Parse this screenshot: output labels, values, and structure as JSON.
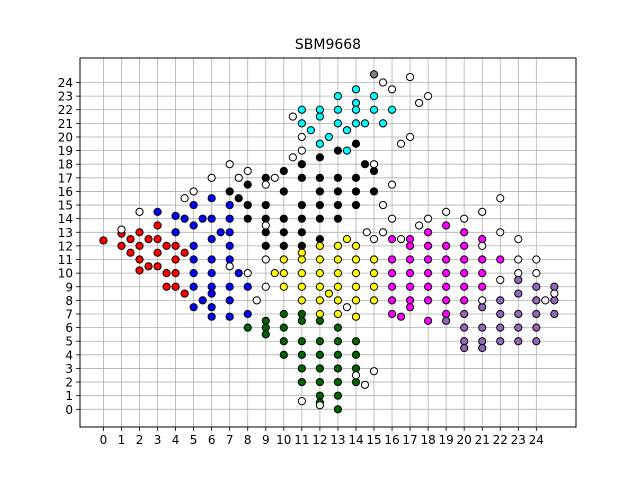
{
  "chart_data": {
    "type": "scatter",
    "title": "SBM9668",
    "xlabel": "",
    "ylabel": "",
    "xlim": [
      -1.3,
      26.2
    ],
    "ylim": [
      -1.3,
      25.8
    ],
    "x_ticks": [
      "0",
      "1",
      "2",
      "3",
      "4",
      "5",
      "6",
      "7",
      "8",
      "9",
      "10",
      "11",
      "12",
      "13",
      "14",
      "15",
      "16",
      "17",
      "18",
      "19",
      "20",
      "21",
      "22",
      "23",
      "24"
    ],
    "y_ticks": [
      "0",
      "1",
      "2",
      "3",
      "4",
      "5",
      "6",
      "7",
      "8",
      "9",
      "10",
      "11",
      "12",
      "13",
      "14",
      "15",
      "16",
      "17",
      "18",
      "19",
      "20",
      "21",
      "22",
      "23",
      "24"
    ],
    "grid": true,
    "legend": "none",
    "marker_edge_color": "#000000",
    "series": [
      {
        "color": "#ff0000",
        "points": [
          [
            0,
            12.4
          ],
          [
            1,
            12.9
          ],
          [
            1,
            12
          ],
          [
            1.5,
            11.5
          ],
          [
            2,
            13
          ],
          [
            2,
            12
          ],
          [
            2,
            11
          ],
          [
            2.5,
            10.5
          ],
          [
            3,
            13.5
          ],
          [
            3,
            12.5
          ],
          [
            3,
            11.5
          ],
          [
            3,
            10.5
          ],
          [
            3.5,
            10
          ],
          [
            4,
            12
          ],
          [
            4,
            11
          ],
          [
            4,
            10
          ],
          [
            4,
            9
          ],
          [
            4.5,
            8.5
          ],
          [
            4.5,
            11.5
          ],
          [
            2.5,
            12.5
          ],
          [
            1.5,
            12.5
          ],
          [
            3.5,
            12
          ],
          [
            3.5,
            9
          ],
          [
            4,
            13
          ],
          [
            2,
            10.2
          ]
        ]
      },
      {
        "color": "#0000ff",
        "points": [
          [
            3,
            14.5
          ],
          [
            4,
            14.2
          ],
          [
            5,
            15
          ],
          [
            6,
            15.5
          ],
          [
            7,
            15
          ],
          [
            4,
            13
          ],
          [
            5,
            13.5
          ],
          [
            6,
            14
          ],
          [
            7,
            14
          ],
          [
            5,
            12
          ],
          [
            6,
            12.5
          ],
          [
            7,
            13
          ],
          [
            5,
            11
          ],
          [
            6,
            11
          ],
          [
            7,
            12
          ],
          [
            5,
            10
          ],
          [
            6,
            10
          ],
          [
            7,
            11
          ],
          [
            5,
            9
          ],
          [
            6,
            9
          ],
          [
            7,
            9
          ],
          [
            5.5,
            8
          ],
          [
            6,
            7.5
          ],
          [
            7,
            8
          ],
          [
            6,
            6.8
          ],
          [
            7,
            6.8
          ],
          [
            8,
            7
          ],
          [
            8,
            9
          ],
          [
            6.5,
            13
          ],
          [
            5.5,
            14
          ],
          [
            4.5,
            14
          ],
          [
            7.5,
            10
          ],
          [
            6,
            8.5
          ],
          [
            5,
            7.5
          ]
        ]
      },
      {
        "color": "#000000",
        "points": [
          [
            7,
            16
          ],
          [
            8,
            16.5
          ],
          [
            9,
            17
          ],
          [
            10,
            17.5
          ],
          [
            11,
            18
          ],
          [
            12,
            18.5
          ],
          [
            13,
            19
          ],
          [
            14,
            19.5
          ],
          [
            14.5,
            18
          ],
          [
            13,
            17
          ],
          [
            12,
            16
          ],
          [
            11,
            15
          ],
          [
            10,
            14
          ],
          [
            9,
            13
          ],
          [
            8,
            15
          ],
          [
            9,
            15
          ],
          [
            10,
            16
          ],
          [
            11,
            17
          ],
          [
            12,
            17
          ],
          [
            13,
            16
          ],
          [
            14,
            16
          ],
          [
            13,
            15
          ],
          [
            12,
            15
          ],
          [
            11,
            14
          ],
          [
            10,
            13
          ],
          [
            12,
            14
          ],
          [
            13,
            14
          ],
          [
            14,
            15
          ],
          [
            9,
            14
          ],
          [
            8,
            14
          ],
          [
            11,
            12
          ],
          [
            12,
            12.5
          ],
          [
            10,
            12
          ],
          [
            9,
            12
          ],
          [
            11,
            13
          ],
          [
            7.5,
            15.5
          ],
          [
            15,
            16
          ],
          [
            14,
            17
          ],
          [
            15,
            17.5
          ]
        ]
      },
      {
        "color": "#00ffff",
        "points": [
          [
            11,
            21
          ],
          [
            12,
            21.5
          ],
          [
            13,
            22
          ],
          [
            14,
            22.5
          ],
          [
            15,
            23
          ],
          [
            12,
            22
          ],
          [
            13,
            23
          ],
          [
            14,
            23.5
          ],
          [
            11.5,
            20.5
          ],
          [
            12.5,
            20
          ],
          [
            13.5,
            20.5
          ],
          [
            14.5,
            21
          ],
          [
            15,
            22
          ],
          [
            13,
            21
          ],
          [
            14,
            21
          ],
          [
            15.5,
            21
          ],
          [
            12,
            19.5
          ],
          [
            13.5,
            19
          ],
          [
            16,
            22
          ],
          [
            14,
            22
          ],
          [
            11,
            22
          ]
        ]
      },
      {
        "color": "#ffff00",
        "points": [
          [
            10,
            11
          ],
          [
            11,
            11.5
          ],
          [
            12,
            12
          ],
          [
            13,
            12
          ],
          [
            14,
            12
          ],
          [
            15,
            11
          ],
          [
            10,
            10
          ],
          [
            11,
            10
          ],
          [
            12,
            10
          ],
          [
            13,
            10
          ],
          [
            14,
            10
          ],
          [
            15,
            10
          ],
          [
            11,
            9
          ],
          [
            12,
            9
          ],
          [
            13,
            9
          ],
          [
            14,
            9
          ],
          [
            15,
            9
          ],
          [
            11,
            8
          ],
          [
            12,
            8
          ],
          [
            13,
            8
          ],
          [
            14,
            8
          ],
          [
            15,
            8
          ],
          [
            12,
            7
          ],
          [
            13,
            7
          ],
          [
            14,
            6.8
          ],
          [
            11,
            11
          ],
          [
            13,
            11
          ],
          [
            14,
            11
          ],
          [
            12,
            11
          ],
          [
            10,
            9
          ],
          [
            9.5,
            10
          ],
          [
            13.5,
            12.5
          ],
          [
            12.5,
            8.5
          ]
        ]
      },
      {
        "color": "#ff00ff",
        "points": [
          [
            16,
            12.5
          ],
          [
            17,
            12.5
          ],
          [
            18,
            13
          ],
          [
            19,
            13.5
          ],
          [
            20,
            13
          ],
          [
            21,
            12.5
          ],
          [
            16,
            11
          ],
          [
            17,
            11
          ],
          [
            18,
            11
          ],
          [
            19,
            11
          ],
          [
            20,
            11
          ],
          [
            21,
            11
          ],
          [
            16,
            10
          ],
          [
            17,
            10
          ],
          [
            18,
            10
          ],
          [
            19,
            10
          ],
          [
            20,
            10
          ],
          [
            21,
            10
          ],
          [
            16,
            9
          ],
          [
            17,
            9
          ],
          [
            18,
            9
          ],
          [
            19,
            9
          ],
          [
            20,
            9
          ],
          [
            16,
            8
          ],
          [
            17,
            8
          ],
          [
            18,
            8
          ],
          [
            19,
            7
          ],
          [
            16,
            7
          ],
          [
            18,
            6.5
          ],
          [
            20,
            8
          ],
          [
            21,
            9
          ],
          [
            19,
            12
          ],
          [
            18,
            12
          ],
          [
            17,
            12
          ],
          [
            20,
            12
          ],
          [
            22,
            11
          ],
          [
            19,
            8
          ],
          [
            17,
            7.5
          ],
          [
            16.5,
            6.8
          ]
        ]
      },
      {
        "color": "#006400",
        "points": [
          [
            8,
            6
          ],
          [
            9,
            6.5
          ],
          [
            10,
            7
          ],
          [
            11,
            6.5
          ],
          [
            12,
            6.5
          ],
          [
            13,
            6
          ],
          [
            9,
            5.5
          ],
          [
            10,
            5
          ],
          [
            11,
            5
          ],
          [
            12,
            5
          ],
          [
            13,
            5
          ],
          [
            14,
            5
          ],
          [
            10,
            4
          ],
          [
            11,
            4
          ],
          [
            12,
            4
          ],
          [
            13,
            4
          ],
          [
            14,
            4
          ],
          [
            11,
            3
          ],
          [
            12,
            3
          ],
          [
            13,
            3
          ],
          [
            14,
            3
          ],
          [
            11,
            2
          ],
          [
            12,
            2
          ],
          [
            13,
            2
          ],
          [
            14,
            2
          ],
          [
            12,
            1
          ],
          [
            13,
            1
          ],
          [
            12,
            0.5
          ],
          [
            13,
            0
          ],
          [
            10,
            6
          ],
          [
            11,
            7
          ],
          [
            9,
            6
          ]
        ]
      },
      {
        "color": "#9467bd",
        "points": [
          [
            20,
            7
          ],
          [
            21,
            7.5
          ],
          [
            22,
            8
          ],
          [
            23,
            8.5
          ],
          [
            24,
            9
          ],
          [
            25,
            9
          ],
          [
            20,
            6
          ],
          [
            21,
            6
          ],
          [
            22,
            6
          ],
          [
            23,
            6
          ],
          [
            24,
            6
          ],
          [
            25,
            7
          ],
          [
            20,
            5
          ],
          [
            21,
            5
          ],
          [
            22,
            5
          ],
          [
            23,
            5
          ],
          [
            24,
            5
          ],
          [
            21,
            4.5
          ],
          [
            22,
            7
          ],
          [
            23,
            7
          ],
          [
            24,
            7
          ],
          [
            19,
            6.5
          ],
          [
            20,
            4.5
          ],
          [
            24,
            8
          ],
          [
            25,
            8
          ],
          [
            23,
            9.5
          ]
        ]
      },
      {
        "color": "#ffffff",
        "points": [
          [
            1,
            13.2
          ],
          [
            2,
            14.5
          ],
          [
            4.5,
            15.5
          ],
          [
            5,
            16
          ],
          [
            6,
            17
          ],
          [
            7,
            18
          ],
          [
            8,
            17.5
          ],
          [
            9,
            16.5
          ],
          [
            10.5,
            18.5
          ],
          [
            11,
            19
          ],
          [
            9.5,
            17
          ],
          [
            7.5,
            17
          ],
          [
            15.5,
            15
          ],
          [
            16,
            14
          ],
          [
            15.5,
            13
          ],
          [
            16,
            16.5
          ],
          [
            15,
            18
          ],
          [
            16.5,
            19.5
          ],
          [
            17,
            20
          ],
          [
            17.5,
            22.5
          ],
          [
            18,
            23
          ],
          [
            17,
            24.4
          ],
          [
            16,
            23.5
          ],
          [
            15.5,
            24
          ],
          [
            11,
            20
          ],
          [
            10.5,
            21.5
          ],
          [
            14.6,
            13
          ],
          [
            15,
            12.5
          ],
          [
            16.5,
            12.5
          ],
          [
            17.5,
            13.5
          ],
          [
            18,
            14
          ],
          [
            19,
            14.5
          ],
          [
            20,
            14
          ],
          [
            21,
            14.5
          ],
          [
            22,
            13
          ],
          [
            22,
            15.5
          ],
          [
            23,
            12.5
          ],
          [
            23,
            11
          ],
          [
            24,
            11
          ],
          [
            24,
            10
          ],
          [
            23,
            10
          ],
          [
            22,
            9.5
          ],
          [
            21,
            8
          ],
          [
            25,
            8.5
          ],
          [
            24.5,
            8
          ],
          [
            21,
            12
          ],
          [
            9,
            9
          ],
          [
            8.5,
            8
          ],
          [
            8,
            10
          ],
          [
            7,
            10.5
          ],
          [
            14,
            2.5
          ],
          [
            14.5,
            1.8
          ],
          [
            15,
            2.8
          ],
          [
            12,
            0.3
          ],
          [
            11,
            0.6
          ],
          [
            13.5,
            7.5
          ],
          [
            9,
            11
          ],
          [
            9,
            13.5
          ]
        ]
      },
      {
        "color": "#808080",
        "points": [
          [
            15,
            24.6
          ]
        ]
      }
    ]
  }
}
